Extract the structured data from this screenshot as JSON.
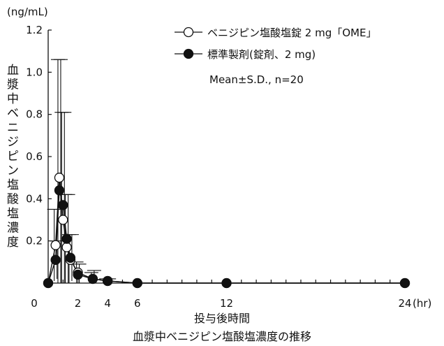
{
  "chart_data": {
    "type": "line",
    "caption": "血漿中ベニジピン塩酸塩濃度の推移",
    "xlabel": "投与後時間",
    "x_unit": "(hr)",
    "ylabel": "血漿中ベニジピン塩酸塩濃度",
    "y_unit": "(ng/mL)",
    "xlim": [
      0,
      24
    ],
    "ylim": [
      0,
      1.2
    ],
    "x_ticks": [
      0,
      2,
      4,
      6,
      12,
      24
    ],
    "y_ticks": [
      0.2,
      0.4,
      0.6,
      0.8,
      1.0,
      1.2
    ],
    "y_tick_labels": [
      "0.2",
      "0.4",
      "0.6",
      "0.8",
      "1.0",
      "1.2"
    ],
    "x_tick_labels": [
      "0",
      "2",
      "4",
      "6",
      "12",
      "24"
    ],
    "annotation": "Mean±S.D., n=20",
    "grid": false,
    "legend_position": "top-right",
    "series": [
      {
        "name": "ベニジピン塩酸塩錠 2 mg「OME」",
        "marker": "open-circle",
        "x": [
          0,
          0.5,
          0.75,
          1,
          1.25,
          1.5,
          2,
          3,
          4,
          6,
          12,
          24
        ],
        "y": [
          0,
          0.18,
          0.5,
          0.3,
          0.17,
          0.11,
          0.05,
          0.02,
          0.01,
          0.0,
          0.0,
          0.0
        ],
        "sd": [
          0,
          0.17,
          0.56,
          0.51,
          0.25,
          0.12,
          0.05,
          0.03,
          0.01,
          0,
          0,
          0
        ]
      },
      {
        "name": "標準製剤(錠剤、2 mg)",
        "marker": "filled-circle",
        "x": [
          0,
          0.5,
          0.75,
          1,
          1.25,
          1.5,
          2,
          3,
          4,
          6,
          12,
          24
        ],
        "y": [
          0,
          0.11,
          0.44,
          0.37,
          0.21,
          0.12,
          0.04,
          0.02,
          0.01,
          0.0,
          0.0,
          0.0
        ],
        "sd": [
          0,
          0.09,
          0.62,
          0.44,
          0.21,
          0.11,
          0.05,
          0.04,
          0.01,
          0,
          0,
          0
        ]
      }
    ]
  }
}
